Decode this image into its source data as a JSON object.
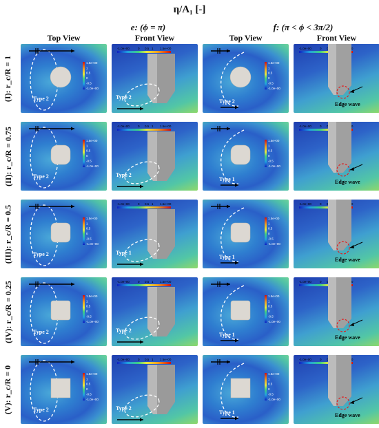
{
  "figure": {
    "title": "η/A₁ [-]",
    "groups": [
      "e: (ϕ = π)",
      "f: (π < ϕ < 3π/2)"
    ],
    "columns": [
      "Top View",
      "Front View",
      "Top View",
      "Front View"
    ],
    "rows": [
      {
        "label": "(I): r_c/R = 1",
        "shape": "circle"
      },
      {
        "label": "(II): r_c/R = 0.75",
        "shape": "rounded"
      },
      {
        "label": "(III): r_c/R = 0.5",
        "shape": "rounded-small"
      },
      {
        "label": "(IV): r_c/R = 0.25",
        "shape": "rounded-tiny"
      },
      {
        "label": "(V): r_c/R = 0",
        "shape": "square"
      }
    ],
    "colorbar_ticks_vertical": [
      "1.5e+00",
      "1",
      "0.5",
      "0",
      "-0.5",
      "-1.0e+00"
    ],
    "colorbar_ticks_horizontal": [
      "-1.0e+00",
      "0",
      "0.5",
      "1",
      "1.5e+00"
    ],
    "annotations": {
      "type2": "Type 2",
      "type1": "Type 1",
      "edge_wave": "Edge wave"
    },
    "colors": {
      "cool": "#2a5fc8",
      "warm": "#e04020",
      "mid": "#4fc0a8",
      "body": "#d9d6d0"
    }
  }
}
